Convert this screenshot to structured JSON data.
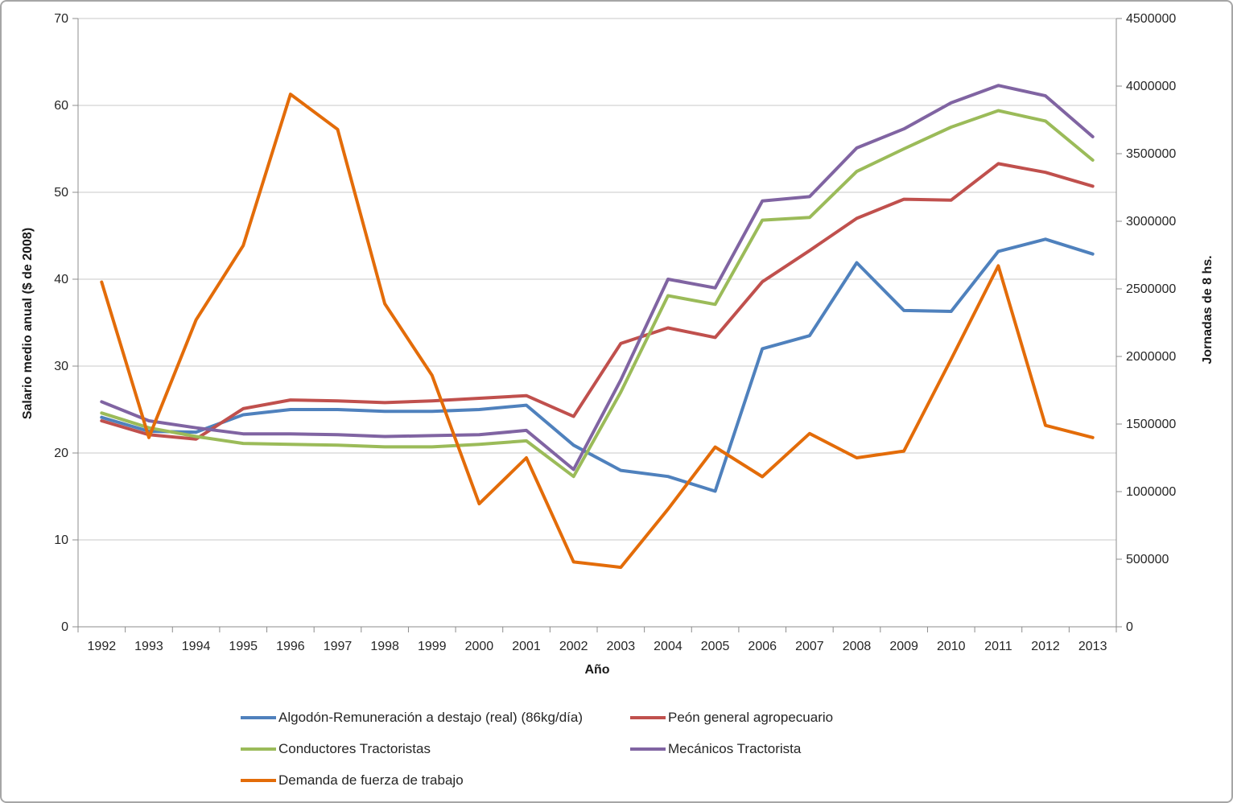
{
  "chart_data": {
    "type": "line",
    "title": "",
    "xlabel": "Año",
    "ylabel_left": "Salario medio anual ($ de 2008)",
    "ylabel_right": "Jornadas de 8 hs.",
    "ylim_left": [
      0,
      70
    ],
    "ylim_right": [
      0,
      4500000
    ],
    "y_ticks_left": [
      "0",
      "10",
      "20",
      "30",
      "40",
      "50",
      "60",
      "70"
    ],
    "y_ticks_right": [
      "0",
      "500000",
      "1000000",
      "1500000",
      "2000000",
      "2500000",
      "3000000",
      "3500000",
      "4000000",
      "4500000"
    ],
    "grid": true,
    "legend_position": "bottom",
    "categories": [
      "1992",
      "1993",
      "1994",
      "1995",
      "1996",
      "1997",
      "1998",
      "1999",
      "2000",
      "2001",
      "2002",
      "2003",
      "2004",
      "2005",
      "2006",
      "2007",
      "2008",
      "2009",
      "2010",
      "2011",
      "2012",
      "2013"
    ],
    "series": [
      {
        "name": "Algodón-Remuneración a destajo (real) (86kg/día)",
        "axis": "left",
        "color": "#4F81BD",
        "values": [
          24.1,
          22.5,
          22.4,
          24.4,
          25.0,
          25.0,
          24.8,
          24.8,
          25.0,
          25.5,
          20.9,
          18.0,
          17.3,
          15.6,
          32.0,
          33.5,
          41.9,
          36.4,
          36.3,
          43.2,
          44.6,
          42.9
        ]
      },
      {
        "name": "Peón general agropecuario",
        "axis": "left",
        "color": "#C0504D",
        "values": [
          23.7,
          22.1,
          21.6,
          25.1,
          26.1,
          26.0,
          25.8,
          26.0,
          26.3,
          26.6,
          24.2,
          32.6,
          34.4,
          33.3,
          39.7,
          43.3,
          47.0,
          49.2,
          49.1,
          53.3,
          52.3,
          50.7
        ]
      },
      {
        "name": "Conductores Tractoristas",
        "axis": "left",
        "color": "#9BBB59",
        "values": [
          24.6,
          22.9,
          21.9,
          21.1,
          21.0,
          20.9,
          20.7,
          20.7,
          21.0,
          21.4,
          17.3,
          27.0,
          38.1,
          37.1,
          46.8,
          47.1,
          52.4,
          55.0,
          57.5,
          59.4,
          58.2,
          53.7
        ]
      },
      {
        "name": "Mecánicos Tractorista",
        "axis": "left",
        "color": "#8064A2",
        "values": [
          25.9,
          23.7,
          22.9,
          22.2,
          22.2,
          22.1,
          21.9,
          22.0,
          22.1,
          22.6,
          18.1,
          28.4,
          40.0,
          39.0,
          49.0,
          49.5,
          55.1,
          57.3,
          60.3,
          62.3,
          61.1,
          56.4
        ]
      },
      {
        "name": "Demanda de fuerza de trabajo",
        "axis": "right",
        "color": "#E36C09",
        "values": [
          2550000,
          1400000,
          2270000,
          2820000,
          3940000,
          3680000,
          2390000,
          1860000,
          910000,
          1250000,
          480000,
          440000,
          870000,
          1330000,
          1110000,
          1430000,
          1250000,
          1300000,
          1980000,
          2670000,
          1490000,
          1400000
        ]
      }
    ],
    "style": {
      "grid_color": "#C9C9C9",
      "axis_color": "#8C8C8C",
      "line_width": 4
    }
  }
}
